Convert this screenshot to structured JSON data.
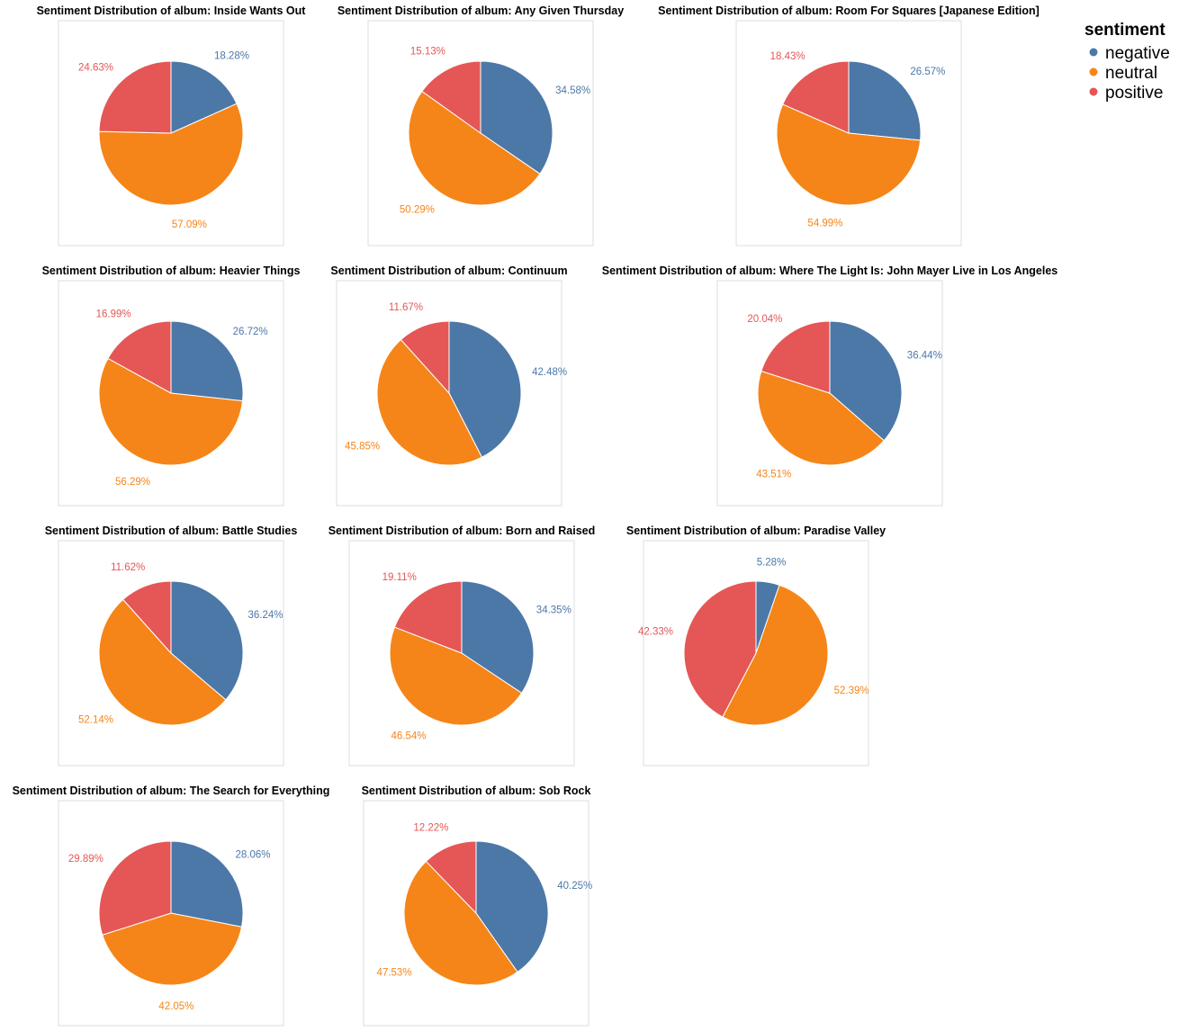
{
  "legend": {
    "title": "sentiment",
    "items": [
      {
        "label": "negative",
        "color": "#4c78a8"
      },
      {
        "label": "neutral",
        "color": "#f58518"
      },
      {
        "label": "positive",
        "color": "#e45756"
      }
    ]
  },
  "chart_data": [
    {
      "type": "pie",
      "title": "Sentiment Distribution of album: Inside Wants Out",
      "categories": [
        "negative",
        "neutral",
        "positive"
      ],
      "values": [
        18.28,
        57.09,
        24.63
      ],
      "labels": [
        "18.28%",
        "57.09%",
        "24.63%"
      ]
    },
    {
      "type": "pie",
      "title": "Sentiment Distribution of album: Any Given Thursday",
      "categories": [
        "negative",
        "neutral",
        "positive"
      ],
      "values": [
        34.58,
        50.29,
        15.13
      ],
      "labels": [
        "34.58%",
        "50.29%",
        "15.13%"
      ]
    },
    {
      "type": "pie",
      "title": "Sentiment Distribution of album: Room For Squares [Japanese Edition]",
      "categories": [
        "negative",
        "neutral",
        "positive"
      ],
      "values": [
        26.57,
        54.99,
        18.43
      ],
      "labels": [
        "26.57%",
        "54.99%",
        "18.43%"
      ]
    },
    {
      "type": "pie",
      "title": "Sentiment Distribution of album: Heavier Things",
      "categories": [
        "negative",
        "neutral",
        "positive"
      ],
      "values": [
        26.72,
        56.29,
        16.99
      ],
      "labels": [
        "26.72%",
        "56.29%",
        "16.99%"
      ]
    },
    {
      "type": "pie",
      "title": "Sentiment Distribution of album: Continuum",
      "categories": [
        "negative",
        "neutral",
        "positive"
      ],
      "values": [
        42.48,
        45.85,
        11.67
      ],
      "labels": [
        "42.48%",
        "45.85%",
        "11.67%"
      ]
    },
    {
      "type": "pie",
      "title": "Sentiment Distribution of album: Where The Light Is: John Mayer Live in Los Angeles",
      "categories": [
        "negative",
        "neutral",
        "positive"
      ],
      "values": [
        36.44,
        43.51,
        20.04
      ],
      "labels": [
        "36.44%",
        "43.51%",
        "20.04%"
      ]
    },
    {
      "type": "pie",
      "title": "Sentiment Distribution of album: Battle Studies",
      "categories": [
        "negative",
        "neutral",
        "positive"
      ],
      "values": [
        36.24,
        52.14,
        11.62
      ],
      "labels": [
        "36.24%",
        "52.14%",
        "11.62%"
      ]
    },
    {
      "type": "pie",
      "title": "Sentiment Distribution of album: Born and Raised",
      "categories": [
        "negative",
        "neutral",
        "positive"
      ],
      "values": [
        34.35,
        46.54,
        19.11
      ],
      "labels": [
        "34.35%",
        "46.54%",
        "19.11%"
      ]
    },
    {
      "type": "pie",
      "title": "Sentiment Distribution of album: Paradise Valley",
      "categories": [
        "negative",
        "neutral",
        "positive"
      ],
      "values": [
        5.28,
        52.39,
        42.33
      ],
      "labels": [
        "5.28%",
        "52.39%",
        "42.33%"
      ]
    },
    {
      "type": "pie",
      "title": "Sentiment Distribution of album: The Search for Everything",
      "categories": [
        "negative",
        "neutral",
        "positive"
      ],
      "values": [
        28.06,
        42.05,
        29.89
      ],
      "labels": [
        "28.06%",
        "42.05%",
        "29.89%"
      ]
    },
    {
      "type": "pie",
      "title": "Sentiment Distribution of album: Sob Rock",
      "categories": [
        "negative",
        "neutral",
        "positive"
      ],
      "values": [
        40.25,
        47.53,
        12.22
      ],
      "labels": [
        "40.25%",
        "47.53%",
        "12.22%"
      ]
    }
  ]
}
